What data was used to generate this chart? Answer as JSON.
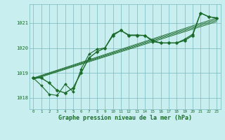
{
  "background_color": "#c8eef0",
  "grid_color": "#7ab8bc",
  "line_color": "#1a6b2a",
  "xlabel": "Graphe pression niveau de la mer (hPa)",
  "ylim": [
    1017.55,
    1021.75
  ],
  "xlim": [
    -0.5,
    23.5
  ],
  "yticks": [
    1018,
    1019,
    1020,
    1021
  ],
  "xticks": [
    0,
    1,
    2,
    3,
    4,
    5,
    6,
    7,
    8,
    9,
    10,
    11,
    12,
    13,
    14,
    15,
    16,
    17,
    18,
    19,
    20,
    21,
    22,
    23
  ],
  "main_line": [
    1018.8,
    1018.8,
    1018.6,
    1018.3,
    1018.2,
    1018.4,
    1019.0,
    1019.6,
    1019.85,
    1020.0,
    1020.5,
    1020.7,
    1020.5,
    1020.5,
    1020.5,
    1020.3,
    1020.2,
    1020.2,
    1020.2,
    1020.3,
    1020.5,
    1021.4,
    1021.25,
    1021.2
  ],
  "wiggly_line": [
    1018.8,
    1018.5,
    1018.15,
    1018.1,
    1018.55,
    1018.25,
    1019.15,
    1019.75,
    1019.95,
    1020.0,
    1020.55,
    1020.7,
    1020.52,
    1020.52,
    1020.5,
    1020.25,
    1020.2,
    1020.2,
    1020.2,
    1020.35,
    1020.55,
    1021.4,
    1021.25,
    1021.2
  ],
  "trend_lines": [
    {
      "x": [
        0,
        23
      ],
      "y": [
        1018.8,
        1021.2
      ]
    },
    {
      "x": [
        0,
        23
      ],
      "y": [
        1018.78,
        1021.15
      ]
    },
    {
      "x": [
        0,
        23
      ],
      "y": [
        1018.76,
        1021.1
      ]
    },
    {
      "x": [
        0,
        23
      ],
      "y": [
        1018.74,
        1021.05
      ]
    }
  ]
}
